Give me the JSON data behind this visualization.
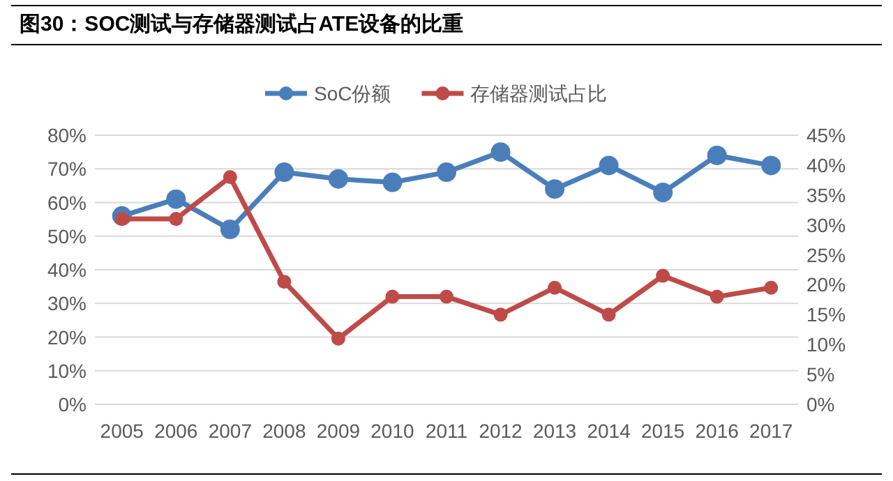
{
  "chart_data": {
    "type": "line",
    "title": "图30：SOC测试与存储器测试占ATE设备的比重",
    "categories": [
      "2005",
      "2006",
      "2007",
      "2008",
      "2009",
      "2010",
      "2011",
      "2012",
      "2013",
      "2014",
      "2015",
      "2016",
      "2017"
    ],
    "series": [
      {
        "name": "SoC份额",
        "color": "#4a7ebb",
        "values": [
          56,
          61,
          52,
          69,
          67,
          66,
          69,
          75,
          64,
          71,
          63,
          74,
          71
        ]
      },
      {
        "name": "存储器测试占比",
        "color": "#be4b48",
        "axis": "y2",
        "values": [
          31,
          31,
          38,
          20.5,
          11,
          18,
          18,
          15,
          19.5,
          15,
          21.5,
          18,
          19.5
        ]
      }
    ],
    "ylim": [
      0,
      80
    ],
    "yticks": [
      {
        "value": 0,
        "label": "0%"
      },
      {
        "value": 10,
        "label": "10%"
      },
      {
        "value": 20,
        "label": "20%"
      },
      {
        "value": 30,
        "label": "30%"
      },
      {
        "value": 40,
        "label": "40%"
      },
      {
        "value": 50,
        "label": "50%"
      },
      {
        "value": 60,
        "label": "60%"
      },
      {
        "value": 70,
        "label": "70%"
      },
      {
        "value": 80,
        "label": "80%"
      }
    ],
    "y2lim": [
      0,
      45
    ],
    "y2ticks": [
      {
        "value": 0,
        "label": "0%"
      },
      {
        "value": 5,
        "label": "5%"
      },
      {
        "value": 10,
        "label": "10%"
      },
      {
        "value": 15,
        "label": "15%"
      },
      {
        "value": 20,
        "label": "20%"
      },
      {
        "value": 25,
        "label": "25%"
      },
      {
        "value": 30,
        "label": "30%"
      },
      {
        "value": 35,
        "label": "35%"
      },
      {
        "value": 40,
        "label": "40%"
      },
      {
        "value": 45,
        "label": "45%"
      }
    ],
    "grid": "y",
    "legend": "top",
    "marker": "circle",
    "line_style": "solid"
  }
}
